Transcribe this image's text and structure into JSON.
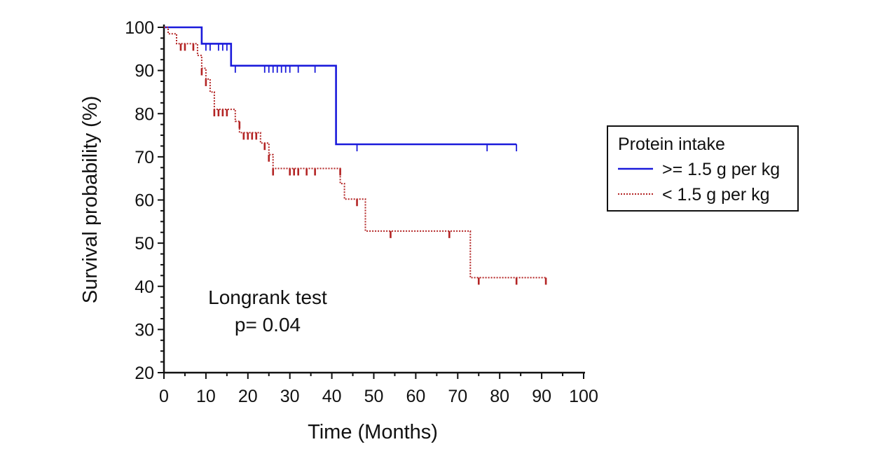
{
  "chart_data": {
    "type": "line",
    "subtype": "kaplan-meier",
    "xlabel": "Time (Months)",
    "ylabel": "Survival probability (%)",
    "xlim": [
      0,
      100
    ],
    "ylim": [
      20,
      100
    ],
    "xticks": [
      0,
      10,
      20,
      30,
      40,
      50,
      60,
      70,
      80,
      90,
      100
    ],
    "yticks": [
      20,
      30,
      40,
      50,
      60,
      70,
      80,
      90,
      100
    ],
    "grid": false,
    "legend": {
      "title": "Protein intake",
      "position": "right"
    },
    "annotation": {
      "line1": "Longrank test",
      "line2": "p= 0.04"
    },
    "series": [
      {
        "name": ">= 1.5 g per kg",
        "color": "#1a1adb",
        "style": "solid",
        "steps": [
          [
            0,
            100
          ],
          [
            9,
            100
          ],
          [
            9,
            96.2
          ],
          [
            16,
            96.2
          ],
          [
            16,
            91.1
          ],
          [
            41,
            91.1
          ],
          [
            41,
            72.9
          ],
          [
            84,
            72.9
          ]
        ],
        "censored": [
          [
            10,
            96.2
          ],
          [
            11,
            96.2
          ],
          [
            13,
            96.2
          ],
          [
            14,
            96.2
          ],
          [
            15,
            96.2
          ],
          [
            17,
            91.1
          ],
          [
            24,
            91.1
          ],
          [
            25,
            91.1
          ],
          [
            26,
            91.1
          ],
          [
            27,
            91.1
          ],
          [
            28,
            91.1
          ],
          [
            29,
            91.1
          ],
          [
            30,
            91.1
          ],
          [
            32,
            91.1
          ],
          [
            36,
            91.1
          ],
          [
            46,
            72.9
          ],
          [
            77,
            72.9
          ],
          [
            84,
            72.9
          ]
        ]
      },
      {
        "name": "< 1.5 g per kg",
        "color": "#b32424",
        "style": "dotted",
        "steps": [
          [
            0,
            100
          ],
          [
            1,
            100
          ],
          [
            1,
            98.5
          ],
          [
            3,
            98.5
          ],
          [
            3,
            96.2
          ],
          [
            8,
            96.2
          ],
          [
            8,
            93.5
          ],
          [
            9,
            93.5
          ],
          [
            9,
            90.5
          ],
          [
            10,
            90.5
          ],
          [
            10,
            88
          ],
          [
            11,
            88
          ],
          [
            11,
            85
          ],
          [
            12,
            85
          ],
          [
            12,
            81
          ],
          [
            17,
            81
          ],
          [
            17,
            78.2
          ],
          [
            18,
            78.2
          ],
          [
            18,
            75.6
          ],
          [
            23,
            75.6
          ],
          [
            23,
            73.2
          ],
          [
            25,
            73.2
          ],
          [
            25,
            70.5
          ],
          [
            26,
            70.5
          ],
          [
            26,
            67.3
          ],
          [
            42,
            67.3
          ],
          [
            42,
            63.8
          ],
          [
            43,
            63.8
          ],
          [
            43,
            60.2
          ],
          [
            48,
            60.2
          ],
          [
            48,
            52.8
          ],
          [
            73,
            52.8
          ],
          [
            73,
            42
          ],
          [
            91,
            42
          ]
        ],
        "censored": [
          [
            4,
            96.2
          ],
          [
            5,
            96.2
          ],
          [
            7,
            96.2
          ],
          [
            9,
            90.5
          ],
          [
            10,
            88
          ],
          [
            12,
            81
          ],
          [
            13,
            81
          ],
          [
            14,
            81
          ],
          [
            15,
            81
          ],
          [
            18,
            78.2
          ],
          [
            19,
            75.6
          ],
          [
            20,
            75.6
          ],
          [
            21,
            75.6
          ],
          [
            22,
            75.6
          ],
          [
            24,
            73.2
          ],
          [
            25,
            70.5
          ],
          [
            26,
            67.3
          ],
          [
            30,
            67.3
          ],
          [
            31,
            67.3
          ],
          [
            32,
            67.3
          ],
          [
            34,
            67.3
          ],
          [
            36,
            67.3
          ],
          [
            42,
            67.3
          ],
          [
            46,
            60.2
          ],
          [
            54,
            52.8
          ],
          [
            68,
            52.8
          ],
          [
            75,
            42
          ],
          [
            84,
            42
          ],
          [
            91,
            42
          ]
        ]
      }
    ]
  }
}
